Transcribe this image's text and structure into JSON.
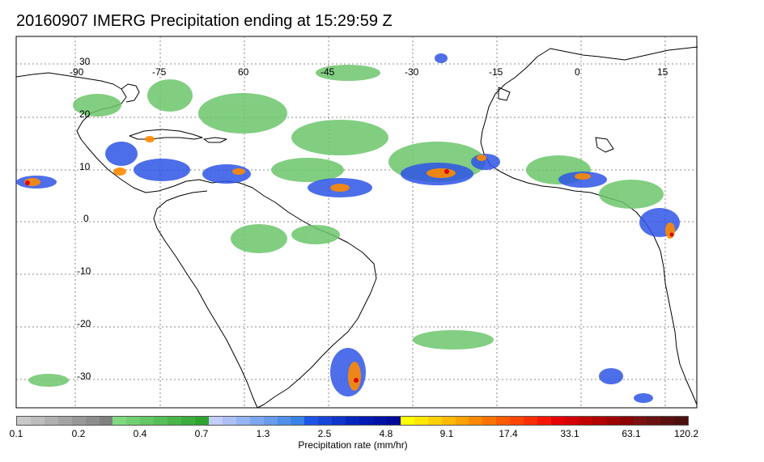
{
  "title": "20160907 IMERG Precipitation ending at 15:29:59 Z",
  "map": {
    "lon_labels": [
      "-90",
      "-75",
      "60",
      "-45",
      "-30",
      "-15",
      "0",
      "15"
    ],
    "lat_labels": [
      "30",
      "20",
      "10",
      "0",
      "-10",
      "-20",
      "-30"
    ],
    "grid": true
  },
  "colorbar": {
    "title": "Precipitation rate (mm/hr)",
    "labels": [
      "0.1",
      "0.2",
      "0.4",
      "0.7",
      "1.3",
      "2.5",
      "4.8",
      "9.1",
      "17.4",
      "33.1",
      "63.1",
      "120.2"
    ],
    "colors": [
      "#c8c8c8",
      "#bcbcbc",
      "#b0b0b0",
      "#a4a4a4",
      "#989898",
      "#8c8c8c",
      "#808080",
      "#7fd97f",
      "#70d070",
      "#63c763",
      "#56be56",
      "#49b549",
      "#3cac3c",
      "#2fa32f",
      "#c4cdf7",
      "#acc0f5",
      "#95b4f2",
      "#7ea7ef",
      "#679bec",
      "#508ee9",
      "#3982e6",
      "#1e55e6",
      "#1645d9",
      "#0e35cc",
      "#0625bf",
      "#001ab3",
      "#0012a6",
      "#000a99",
      "#ffff00",
      "#ffe800",
      "#ffd000",
      "#ffb900",
      "#ffa200",
      "#ff8a00",
      "#ff7300",
      "#ff5c00",
      "#ff4500",
      "#ff2e00",
      "#f61700",
      "#e60000",
      "#d40000",
      "#c20000",
      "#b00000",
      "#9e0000",
      "#8c0000",
      "#7a1010",
      "#6a1010",
      "#5a1010",
      "#4e0f0f"
    ]
  }
}
